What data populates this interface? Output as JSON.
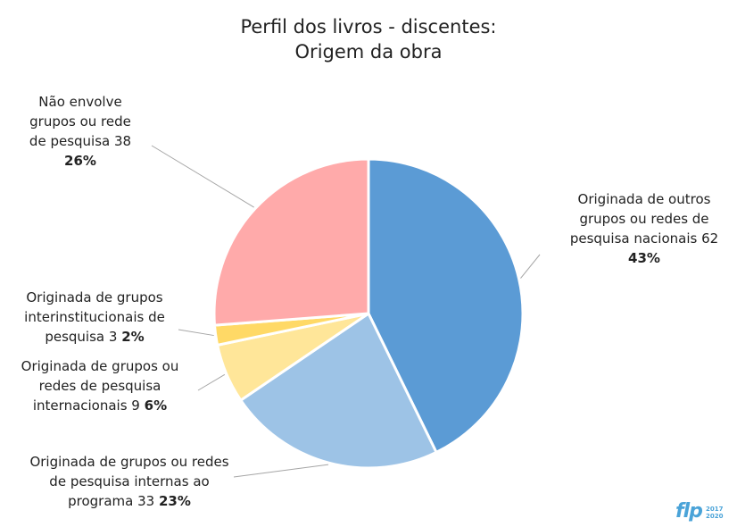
{
  "chart_data": {
    "type": "pie",
    "title_lines": [
      "Perfil dos livros - discentes:",
      "Origem da obra"
    ],
    "slices": [
      {
        "label_lines": [
          "Originada de outros",
          "grupos ou redes de",
          "pesquisa nacionais 62"
        ],
        "value": 62,
        "percent": "43%",
        "color": "#5b9bd5"
      },
      {
        "label_lines": [
          "Originada de grupos ou redes",
          "de pesquisa internas ao",
          "programa 33"
        ],
        "value": 33,
        "percent": "23%",
        "color": "#9dc3e6"
      },
      {
        "label_lines": [
          "Originada de grupos ou",
          "redes de pesquisa",
          "internacionais 9"
        ],
        "value": 9,
        "percent": "6%",
        "color": "#ffe699"
      },
      {
        "label_lines": [
          "Originada de grupos",
          "interinstitucionais de",
          "pesquisa 3"
        ],
        "value": 3,
        "percent": "2%",
        "color": "#ffd966"
      },
      {
        "label_lines": [
          "Não envolve",
          "grupos ou rede",
          "de pesquisa 38"
        ],
        "value": 38,
        "percent": "26%",
        "color": "#ffaaaa"
      }
    ]
  },
  "logo": {
    "text": "flp",
    "years": [
      "2017",
      "2020"
    ]
  }
}
